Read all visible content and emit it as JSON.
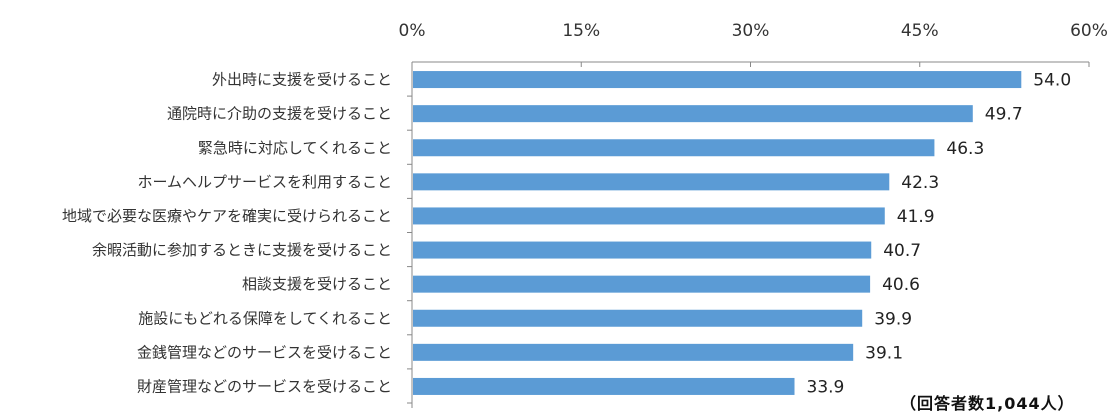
{
  "chart_data": {
    "type": "bar",
    "orientation": "horizontal",
    "categories": [
      "外出時に支援を受けること",
      "通院時に介助の支援を受けること",
      "緊急時に対応してくれること",
      "ホームヘルプサービスを利用すること",
      "地域で必要な医療やケアを確実に受けられること",
      "余暇活動に参加するときに支援を受けること",
      "相談支援を受けること",
      "施設にもどれる保障をしてくれること",
      "金銭管理などのサービスを受けること",
      "財産管理などのサービスを受けること"
    ],
    "values": [
      54.0,
      49.7,
      46.3,
      42.3,
      41.9,
      40.7,
      40.6,
      39.9,
      39.1,
      33.9
    ],
    "value_labels": [
      "54.0",
      "49.7",
      "46.3",
      "42.3",
      "41.9",
      "40.7",
      "40.6",
      "39.9",
      "39.1",
      "33.9"
    ],
    "xlim": [
      0,
      60
    ],
    "xticks": [
      "0%",
      "15%",
      "30%",
      "45%",
      "60%"
    ],
    "xtick_values": [
      0,
      15,
      30,
      45,
      60
    ],
    "axis_position": "top",
    "grid": false,
    "legend": "none",
    "bar_color": "#5b9bd5",
    "note": "（回答者数1,044人）"
  }
}
